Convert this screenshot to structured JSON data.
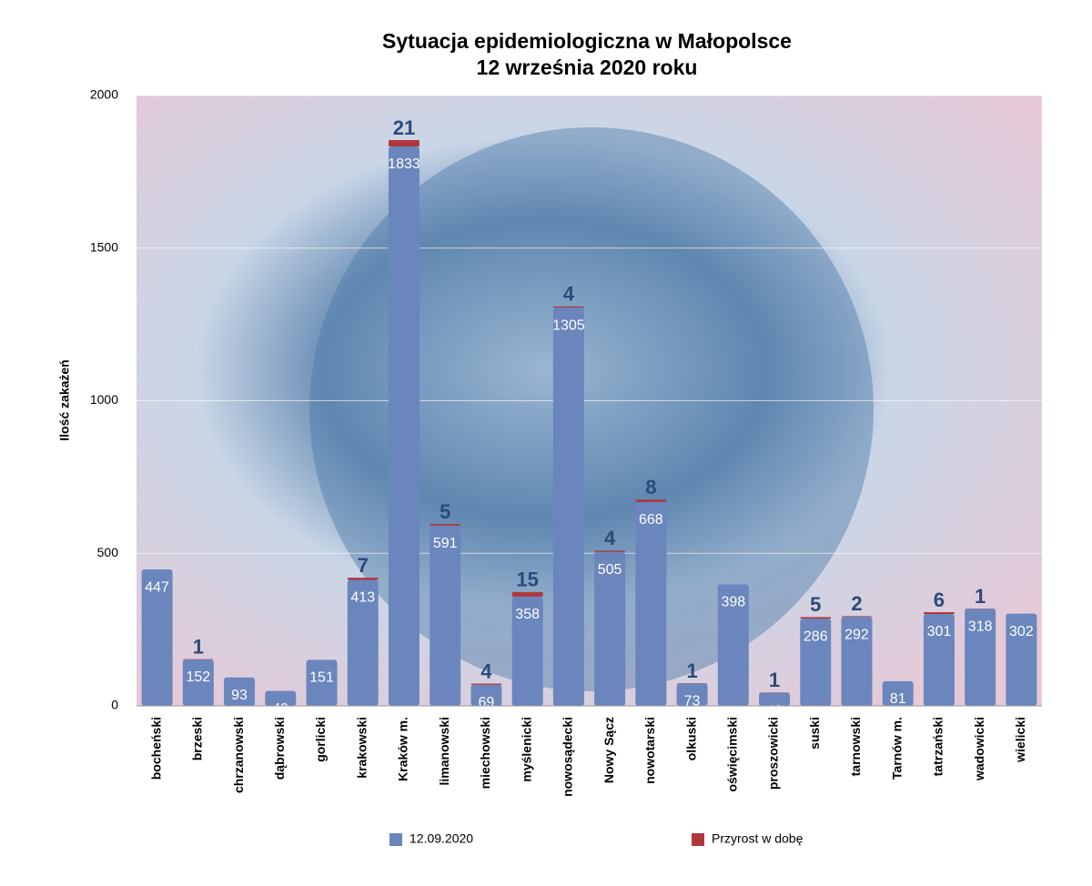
{
  "chart_data": {
    "type": "stacked_bar",
    "title": "Sytuacja epidemiologiczna w Małopolsce",
    "subtitle": "12 września 2020 roku",
    "y_label": "Ilość zakażeń",
    "categories": [
      "bocheński",
      "brzeski",
      "chrzanowski",
      "dąbrowski",
      "gorlicki",
      "krakowski",
      "Kraków m.",
      "limanowski",
      "miechowski",
      "myślenicki",
      "nowosądecki",
      "Nowy Sącz",
      "nowotarski",
      "olkuski",
      "oświęcimski",
      "proszowicki",
      "suski",
      "tarnowski",
      "Tarnów m.",
      "tatrzański",
      "wadowicki",
      "wielicki"
    ],
    "series": [
      {
        "name": "12.09.2020",
        "color": "#6a86bd",
        "values": [
          447,
          152,
          93,
          49,
          151,
          413,
          1833,
          591,
          69,
          358,
          1305,
          505,
          668,
          73,
          398,
          43,
          286,
          292,
          81,
          301,
          318,
          302
        ]
      },
      {
        "name": "Przyrost w dobę",
        "color": "#b0373c",
        "values": [
          null,
          1,
          null,
          null,
          null,
          7,
          21,
          5,
          4,
          15,
          4,
          4,
          8,
          1,
          null,
          1,
          5,
          2,
          null,
          6,
          1,
          null
        ]
      }
    ],
    "ylim": [
      0,
      2000
    ],
    "yticks": [
      0,
      500,
      1000,
      1500,
      2000
    ],
    "grid": true
  }
}
